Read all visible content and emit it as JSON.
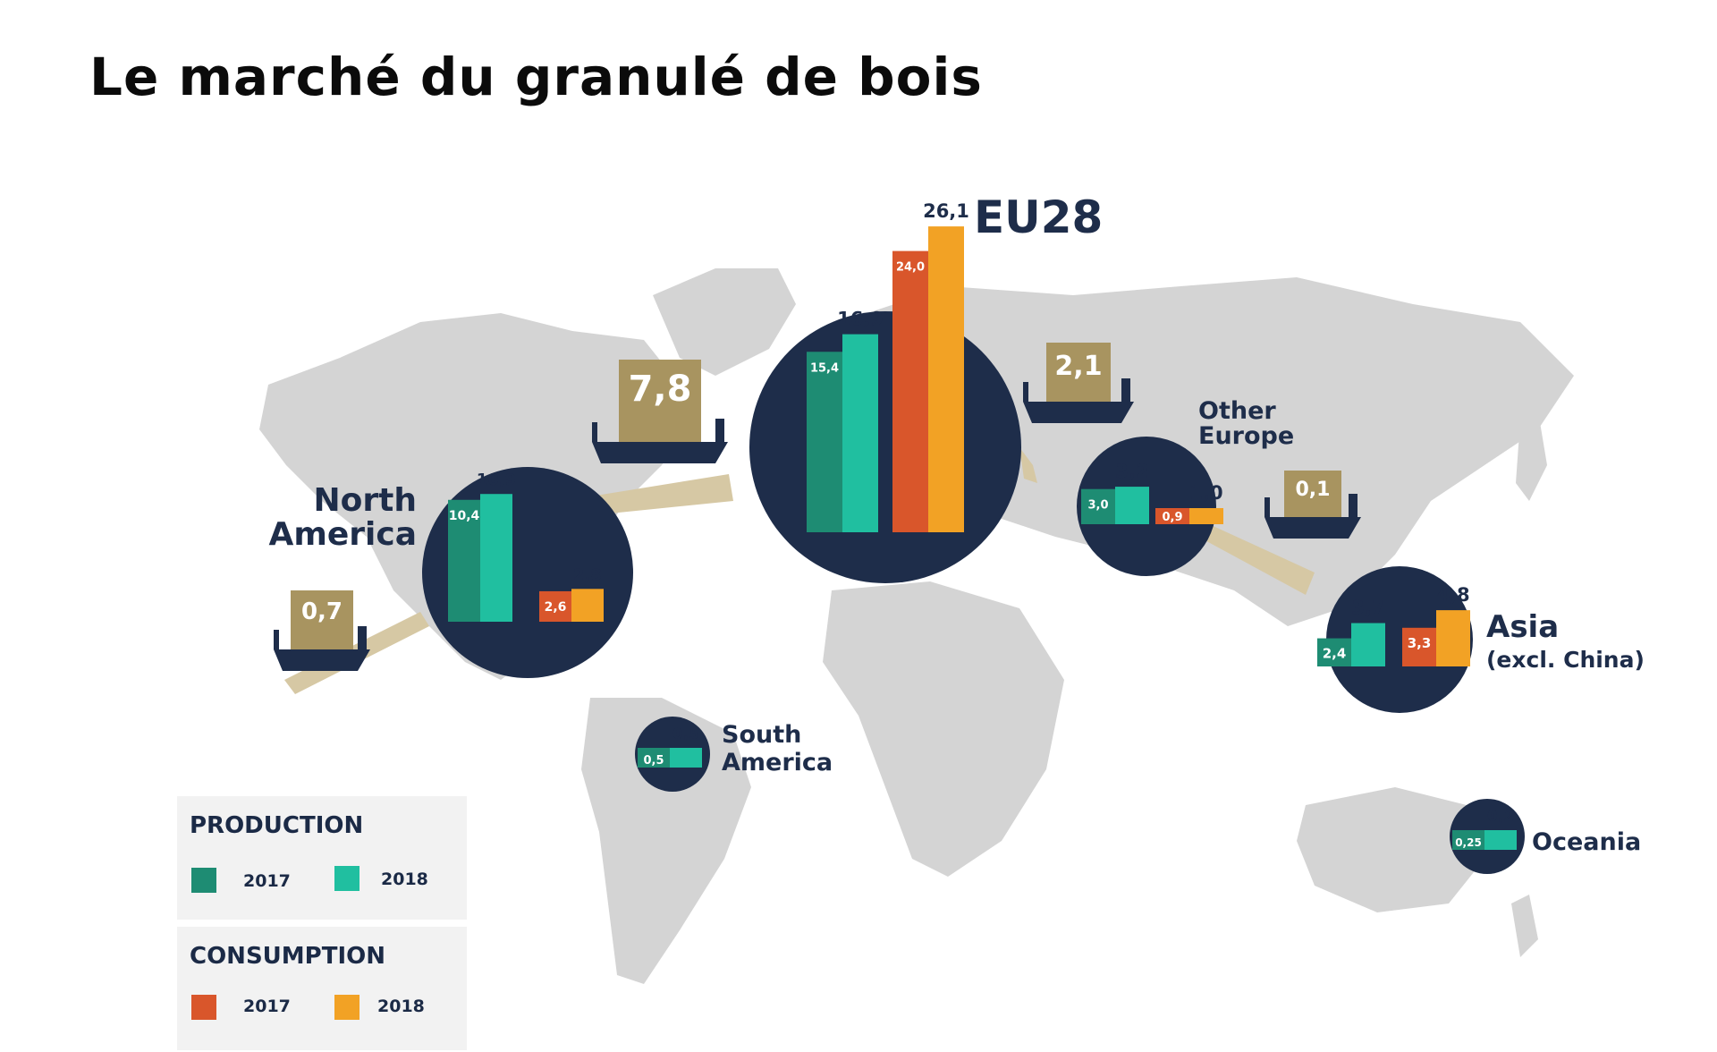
{
  "title": "Le marché du granulé de bois",
  "colors": {
    "prod_2017": "#1e8c73",
    "prod_2018": "#20bfa0",
    "cons_2017": "#d9562b",
    "cons_2018": "#f2a225",
    "circle": "#1e2d4a",
    "trade": "#a89460",
    "map": "#d4d4d4",
    "arrow": "#d6c8a4"
  },
  "legend": {
    "production": {
      "title": "PRODUCTION",
      "y2017": "2017",
      "y2018": "2018"
    },
    "consumption": {
      "title": "CONSUMPTION",
      "y2017": "2017",
      "y2018": "2018"
    }
  },
  "chart_data": {
    "type": "bar",
    "title": "Le marché du granulé de bois",
    "series_names": [
      "Production 2017",
      "Production 2018",
      "Consumption 2017",
      "Consumption 2018"
    ],
    "regions": [
      {
        "name": "North America",
        "production": {
          "2017": "10,4",
          "2018": "10,9"
        },
        "consumption": {
          "2017": "2,6",
          "2018": "2,8"
        }
      },
      {
        "name": "EU28",
        "production": {
          "2017": "15,4",
          "2018": "16,9"
        },
        "consumption": {
          "2017": "24,0",
          "2018": "26,1"
        }
      },
      {
        "name": "Other Europe",
        "production": {
          "2017": "3,0",
          "2018": "3,2"
        },
        "consumption": {
          "2017": "0,9",
          "2018": "1,0"
        }
      },
      {
        "name": "Asia (excl. China)",
        "production": {
          "2017": "2,4",
          "2018": "3,7"
        },
        "consumption": {
          "2017": "3,3",
          "2018": "4,8"
        }
      },
      {
        "name": "South America",
        "production": {
          "2017": "0,5",
          "2018": "0,5"
        }
      },
      {
        "name": "Oceania",
        "production": {
          "2017": "0,25",
          "2018": "0,2"
        }
      }
    ],
    "trade_flows": [
      {
        "value": "0,7"
      },
      {
        "value": "7,8"
      },
      {
        "value": "2,1"
      },
      {
        "value": "0,1"
      }
    ]
  },
  "labels": {
    "north_america": [
      "North",
      "America"
    ],
    "eu28": "EU28",
    "other_europe": [
      "Other",
      "Europe"
    ],
    "asia": [
      "Asia",
      "(excl. China)"
    ],
    "south_america": [
      "South",
      "America"
    ],
    "oceania": "Oceania"
  }
}
